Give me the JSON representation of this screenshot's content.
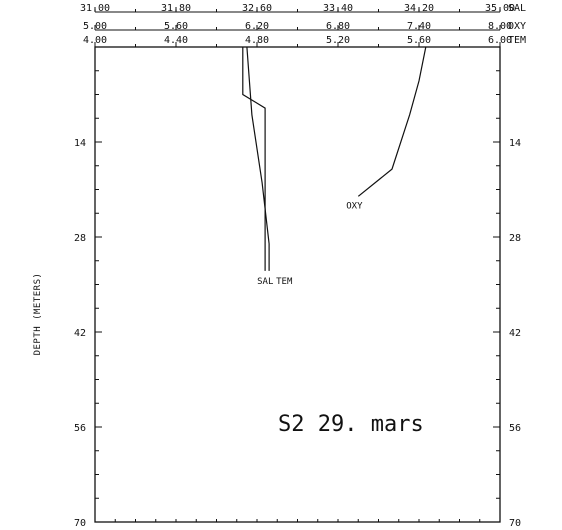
{
  "chart_data": {
    "type": "line",
    "ylabel": "DEPTH (METERS)",
    "ylim": [
      0,
      70
    ],
    "y_reversed": true,
    "y_ticks": [
      14,
      28,
      42,
      56,
      70
    ],
    "y_tick_labels": [
      "14",
      "28",
      "42",
      "56",
      "70"
    ],
    "y_minor_step": 3.5,
    "top_axes": [
      {
        "name": "SAL",
        "range": [
          31.0,
          35.0
        ],
        "ticks": [
          31.0,
          31.8,
          32.6,
          33.4,
          34.2,
          35.0
        ],
        "tick_labels": [
          "31.00",
          "31.80",
          "32.60",
          "33.40",
          "34.20",
          "35.00"
        ]
      },
      {
        "name": "OXY",
        "range": [
          5.0,
          8.0
        ],
        "ticks": [
          5.0,
          5.6,
          6.2,
          6.8,
          7.4,
          8.0
        ],
        "tick_labels": [
          "5.00",
          "5.60",
          "6.20",
          "6.80",
          "7.40",
          "8.00"
        ]
      },
      {
        "name": "TEM",
        "range": [
          4.0,
          6.0
        ],
        "ticks": [
          4.0,
          4.4,
          4.8,
          5.2,
          5.6,
          6.0
        ],
        "tick_labels": [
          "4.00",
          "4.40",
          "4.80",
          "5.20",
          "5.60",
          "6.00"
        ]
      }
    ],
    "series": [
      {
        "name": "SAL",
        "axis": "SAL",
        "label_text": "SAL",
        "points": [
          [
            32.5,
            0
          ],
          [
            32.55,
            10
          ],
          [
            32.65,
            20
          ],
          [
            32.72,
            29
          ],
          [
            32.72,
            33
          ]
        ]
      },
      {
        "name": "TEM",
        "axis": "TEM",
        "label_text": "TEM",
        "points": [
          [
            4.73,
            0
          ],
          [
            4.73,
            7
          ],
          [
            4.84,
            9
          ],
          [
            4.84,
            33
          ]
        ]
      },
      {
        "name": "OXY",
        "axis": "OXY",
        "label_text": "OXY",
        "points": [
          [
            7.45,
            0
          ],
          [
            7.4,
            5
          ],
          [
            7.33,
            10
          ],
          [
            7.2,
            18
          ],
          [
            6.95,
            22
          ]
        ]
      }
    ],
    "annotations": [
      "S2   29. mars"
    ]
  }
}
